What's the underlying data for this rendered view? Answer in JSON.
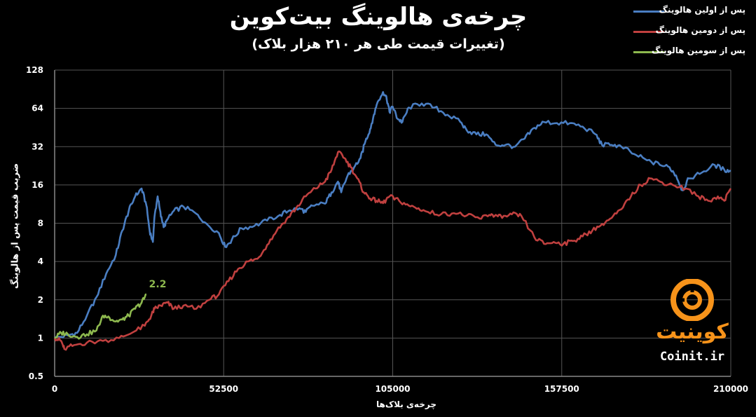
{
  "chart_data": {
    "type": "line",
    "title": "چرخه‌ی هالوینگ بیت‌کوین",
    "subtitle": "(تغییرات قیمت طی هر ۲۱۰ هزار بلاک)",
    "xlabel": "چرخه‌ی بلاک‌ها",
    "ylabel": "ضریب قیمت پس از هالوینگ",
    "y_scale": "log2",
    "xlim": [
      0,
      210000
    ],
    "ylim": [
      0.5,
      128
    ],
    "x_ticks": [
      "0",
      "52500",
      "105000",
      "157500",
      "210000"
    ],
    "y_ticks": [
      "0.5",
      "1",
      "2",
      "4",
      "8",
      "16",
      "32",
      "64",
      "128"
    ],
    "grid": true,
    "legend_position": "top-right",
    "annotation": {
      "text": "2.2",
      "x": 28000,
      "y": 2.2
    },
    "series": [
      {
        "name": "پس از اولین هالوینگ",
        "color": "#4a7ec2",
        "points": [
          [
            0,
            1
          ],
          [
            4000,
            1.05
          ],
          [
            7000,
            1.1
          ],
          [
            10000,
            1.5
          ],
          [
            13000,
            2.1
          ],
          [
            16000,
            3.2
          ],
          [
            19000,
            4.5
          ],
          [
            21000,
            7
          ],
          [
            23000,
            10
          ],
          [
            25000,
            13
          ],
          [
            27000,
            15
          ],
          [
            28500,
            11
          ],
          [
            29500,
            7
          ],
          [
            30500,
            5.7
          ],
          [
            31000,
            9
          ],
          [
            32000,
            13
          ],
          [
            33000,
            9
          ],
          [
            34000,
            7.5
          ],
          [
            35000,
            8.5
          ],
          [
            37000,
            10
          ],
          [
            40000,
            10.8
          ],
          [
            44000,
            9.5
          ],
          [
            47000,
            8
          ],
          [
            51000,
            6.7
          ],
          [
            53000,
            5.2
          ],
          [
            55000,
            5.9
          ],
          [
            58000,
            7.3
          ],
          [
            62000,
            7.6
          ],
          [
            66000,
            8.4
          ],
          [
            70000,
            9.3
          ],
          [
            73000,
            10.1
          ],
          [
            76000,
            10.5
          ],
          [
            78000,
            9.8
          ],
          [
            80000,
            11
          ],
          [
            84000,
            11.4
          ],
          [
            86000,
            14
          ],
          [
            88000,
            17
          ],
          [
            89000,
            14
          ],
          [
            91000,
            19
          ],
          [
            93000,
            22
          ],
          [
            95000,
            26
          ],
          [
            96500,
            35
          ],
          [
            98000,
            44
          ],
          [
            99000,
            55
          ],
          [
            100000,
            68
          ],
          [
            102000,
            86
          ],
          [
            103000,
            80
          ],
          [
            104000,
            60
          ],
          [
            105000,
            66
          ],
          [
            106500,
            53
          ],
          [
            108000,
            50
          ],
          [
            110000,
            65
          ],
          [
            114000,
            70
          ],
          [
            118000,
            65
          ],
          [
            122000,
            57
          ],
          [
            126000,
            50
          ],
          [
            128000,
            43
          ],
          [
            131000,
            40
          ],
          [
            134000,
            40
          ],
          [
            137000,
            33
          ],
          [
            140000,
            33
          ],
          [
            143000,
            32
          ],
          [
            146000,
            37
          ],
          [
            149000,
            45
          ],
          [
            152000,
            50
          ],
          [
            156000,
            49
          ],
          [
            160000,
            49
          ],
          [
            164000,
            46
          ],
          [
            168000,
            40
          ],
          [
            170000,
            33
          ],
          [
            173000,
            33
          ],
          [
            176000,
            32
          ],
          [
            180000,
            28
          ],
          [
            184000,
            25
          ],
          [
            188000,
            23
          ],
          [
            191000,
            22
          ],
          [
            193000,
            19
          ],
          [
            195000,
            14.5
          ],
          [
            197000,
            18
          ],
          [
            201000,
            20
          ],
          [
            205000,
            23
          ],
          [
            208000,
            21
          ],
          [
            210000,
            20.5
          ]
        ]
      },
      {
        "name": "پس از دومین هالوینگ",
        "color": "#c0403f",
        "points": [
          [
            0,
            1
          ],
          [
            2000,
            0.95
          ],
          [
            3000,
            0.82
          ],
          [
            6000,
            0.88
          ],
          [
            10000,
            0.92
          ],
          [
            15000,
            0.95
          ],
          [
            20000,
            1.0
          ],
          [
            24000,
            1.1
          ],
          [
            28000,
            1.25
          ],
          [
            30000,
            1.5
          ],
          [
            31000,
            1.7
          ],
          [
            33000,
            1.8
          ],
          [
            35000,
            1.9
          ],
          [
            37000,
            1.7
          ],
          [
            40000,
            1.8
          ],
          [
            44000,
            1.7
          ],
          [
            48000,
            2.0
          ],
          [
            51000,
            2.2
          ],
          [
            54000,
            2.8
          ],
          [
            57000,
            3.5
          ],
          [
            60000,
            4.0
          ],
          [
            63000,
            4.2
          ],
          [
            66000,
            5.4
          ],
          [
            69000,
            7
          ],
          [
            72000,
            8.6
          ],
          [
            75000,
            10.5
          ],
          [
            78000,
            13
          ],
          [
            81000,
            15
          ],
          [
            84000,
            17
          ],
          [
            86000,
            21
          ],
          [
            88000,
            29
          ],
          [
            90000,
            26
          ],
          [
            92000,
            22
          ],
          [
            94000,
            18
          ],
          [
            96000,
            14
          ],
          [
            98000,
            12.5
          ],
          [
            100000,
            12
          ],
          [
            102000,
            11.5
          ],
          [
            104000,
            13
          ],
          [
            107000,
            12
          ],
          [
            110000,
            11
          ],
          [
            113000,
            10.5
          ],
          [
            116000,
            9.8
          ],
          [
            120000,
            9.4
          ],
          [
            124000,
            9.6
          ],
          [
            128000,
            9.2
          ],
          [
            132000,
            8.7
          ],
          [
            135000,
            9.3
          ],
          [
            137000,
            9.3
          ],
          [
            139000,
            8.8
          ],
          [
            142000,
            9.4
          ],
          [
            145000,
            9.1
          ],
          [
            149000,
            6.2
          ],
          [
            152000,
            5.5
          ],
          [
            155000,
            5.7
          ],
          [
            158000,
            5.5
          ],
          [
            161000,
            5.8
          ],
          [
            164000,
            6.3
          ],
          [
            167000,
            7
          ],
          [
            170000,
            7.9
          ],
          [
            173000,
            8.8
          ],
          [
            176000,
            10.3
          ],
          [
            179000,
            13
          ],
          [
            182000,
            16
          ],
          [
            185000,
            18
          ],
          [
            188000,
            17
          ],
          [
            192000,
            16
          ],
          [
            196000,
            15
          ],
          [
            200000,
            13
          ],
          [
            203000,
            12
          ],
          [
            206000,
            13
          ],
          [
            208000,
            12
          ],
          [
            210000,
            15
          ]
        ]
      },
      {
        "name": "پس از سومین هالوینگ",
        "color": "#8db84e",
        "points": [
          [
            0,
            1
          ],
          [
            2000,
            1.1
          ],
          [
            4000,
            1.08
          ],
          [
            7000,
            1.02
          ],
          [
            10000,
            1.07
          ],
          [
            13000,
            1.15
          ],
          [
            15000,
            1.5
          ],
          [
            17000,
            1.45
          ],
          [
            19000,
            1.35
          ],
          [
            21000,
            1.4
          ],
          [
            23000,
            1.5
          ],
          [
            25000,
            1.7
          ],
          [
            27000,
            1.9
          ],
          [
            28500,
            2.2
          ]
        ]
      }
    ]
  }
}
